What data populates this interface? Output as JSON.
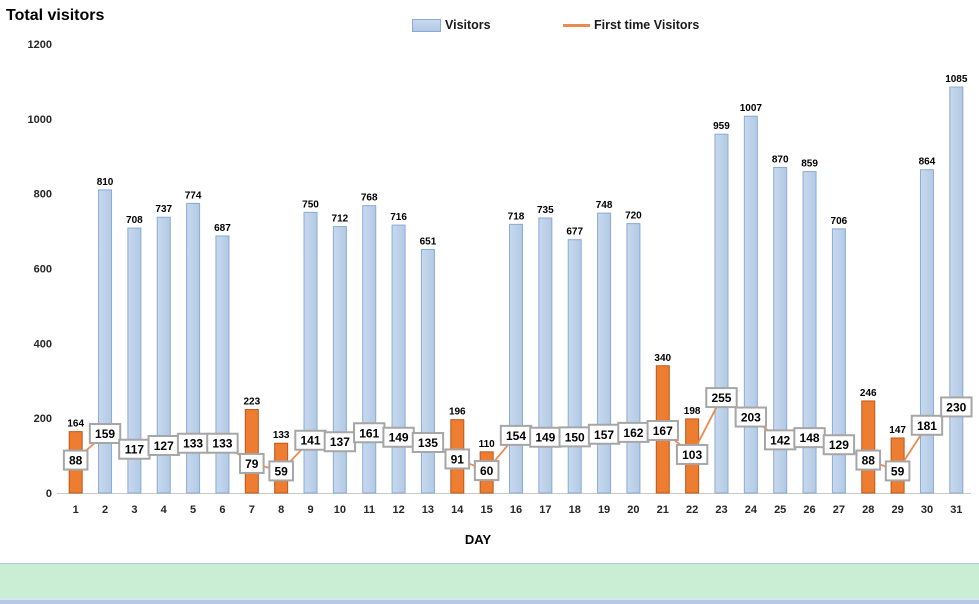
{
  "title": "Total visitors",
  "legend": {
    "visitors_label": "Visitors",
    "first_time_label": "First time Visitors"
  },
  "axis": {
    "x_title": "DAY"
  },
  "colors": {
    "bar_blue_fill_light": "#c7d9ee",
    "bar_blue_fill": "#b3c9e4",
    "bar_blue_border": "#89abd6",
    "bar_orange_fill": "#ed7d31",
    "bar_orange_border": "#c0561b",
    "line": "#ec8b50",
    "label_box_fill": "#ffffff",
    "label_box_border": "#a6a6a6",
    "label_box_text": "#000000",
    "bar_value_text": "#000000",
    "axis_text": "#262626",
    "axis_line": "#c9c9c9",
    "green_strip": "#c9eed4",
    "bottom_strip_blue": "#b5c9e4"
  },
  "chart_data": {
    "type": "bar",
    "title": "Total visitors",
    "xlabel": "DAY",
    "ylabel": "",
    "ylim": [
      0,
      1200
    ],
    "y_ticks": [
      0,
      200,
      400,
      600,
      800,
      1000,
      1200
    ],
    "grid": false,
    "legend_position": "top",
    "categories": [
      1,
      2,
      3,
      4,
      5,
      6,
      7,
      8,
      9,
      10,
      11,
      12,
      13,
      14,
      15,
      16,
      17,
      18,
      19,
      20,
      21,
      22,
      23,
      24,
      25,
      26,
      27,
      28,
      29,
      30,
      31
    ],
    "series": [
      {
        "name": "Visitors",
        "type": "bar",
        "values": [
          164,
          810,
          708,
          737,
          774,
          687,
          223,
          133,
          750,
          712,
          768,
          716,
          651,
          196,
          110,
          718,
          735,
          677,
          748,
          720,
          340,
          198,
          959,
          1007,
          870,
          859,
          706,
          246,
          147,
          864,
          1085
        ],
        "orange_highlight_days": [
          1,
          7,
          8,
          14,
          15,
          21,
          22,
          28,
          29
        ],
        "data_labels": "above bars"
      },
      {
        "name": "First time Visitors",
        "type": "line",
        "values": [
          88,
          159,
          117,
          127,
          133,
          133,
          79,
          59,
          141,
          137,
          161,
          149,
          135,
          91,
          60,
          154,
          149,
          150,
          157,
          162,
          167,
          103,
          255,
          203,
          142,
          148,
          129,
          88,
          59,
          181,
          230
        ],
        "data_labels": "boxed on points"
      }
    ]
  }
}
